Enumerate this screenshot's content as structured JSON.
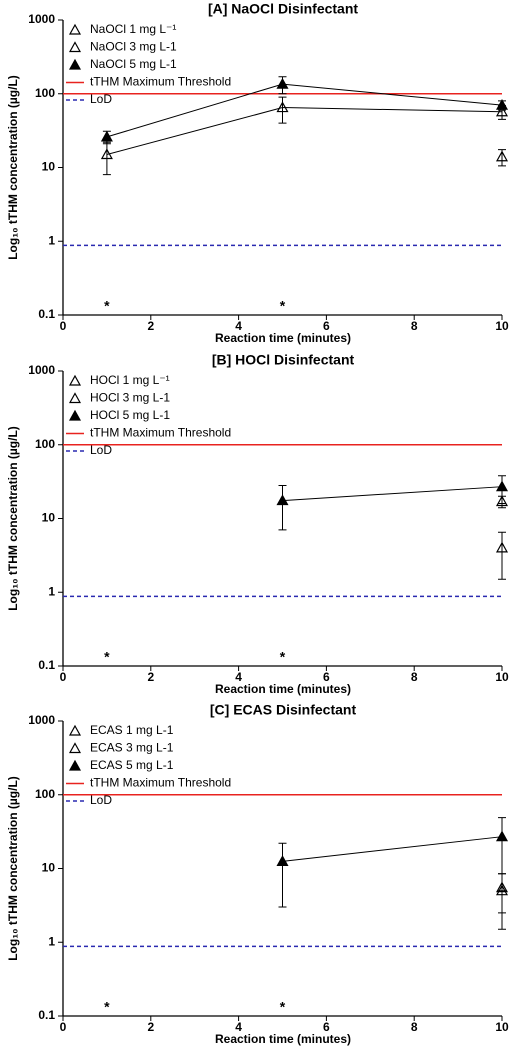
{
  "chart_data": [
    {
      "type": "line",
      "title": "[A] NaOCl Disinfectant",
      "xlabel": "Reaction time (minutes)",
      "ylabel": "Log₁₀ tTHM concentration (µg/L)",
      "x": [
        1,
        5,
        10
      ],
      "xlim": [
        0,
        10
      ],
      "xticks": [
        0,
        2,
        4,
        6,
        8,
        10
      ],
      "yscale": "log",
      "ylim": [
        0.1,
        1000
      ],
      "yticks": [
        0.1,
        1,
        10,
        100,
        1000
      ],
      "legend": "upper left",
      "series": [
        {
          "name": "NaOCl 1 mg L⁻¹",
          "color": "#000000",
          "marker_fill": "none",
          "values": [
            null,
            null,
            14
          ],
          "errors": [
            null,
            null,
            3.5
          ]
        },
        {
          "name": "NaOCl 3 mg L-1",
          "color": "#000000",
          "marker_fill": "none",
          "values": [
            15,
            65,
            57
          ],
          "errors": [
            7,
            25,
            12
          ]
        },
        {
          "name": "NaOCl 5 mg L-1",
          "color": "#000000",
          "marker_fill": "#000000",
          "values": [
            26,
            135,
            70
          ],
          "errors": [
            5,
            35,
            10
          ]
        }
      ],
      "hlines": [
        {
          "name": "tTHM Maximum Threshold",
          "value": 100,
          "color": "#e8231f",
          "dashed": false
        },
        {
          "name": "LoD",
          "value": 0.88,
          "color": "#2a2ab0",
          "dashed": true
        }
      ],
      "annotations": [
        {
          "text": "*",
          "x": 1
        },
        {
          "text": "*",
          "x": 5
        }
      ]
    },
    {
      "type": "line",
      "title": "[B] HOCl Disinfectant",
      "xlabel": "Reaction time (minutes)",
      "ylabel": "Log₁₀ tTHM concentration (µg/L)",
      "x": [
        1,
        5,
        10
      ],
      "xlim": [
        0,
        10
      ],
      "xticks": [
        0,
        2,
        4,
        6,
        8,
        10
      ],
      "yscale": "log",
      "ylim": [
        0.1,
        1000
      ],
      "yticks": [
        0.1,
        1,
        10,
        100,
        1000
      ],
      "legend": "upper left",
      "series": [
        {
          "name": "HOCl 1 mg L⁻¹",
          "color": "#000000",
          "marker_fill": "none",
          "values": [
            null,
            null,
            4
          ],
          "errors": [
            null,
            null,
            2.5
          ]
        },
        {
          "name": "HOCl 3 mg L-1",
          "color": "#000000",
          "marker_fill": "none",
          "values": [
            null,
            null,
            17
          ],
          "errors": [
            null,
            null,
            3
          ]
        },
        {
          "name": "HOCl 5 mg L-1",
          "color": "#000000",
          "marker_fill": "#000000",
          "values": [
            null,
            17.5,
            27
          ],
          "errors": [
            null,
            10.5,
            11
          ]
        }
      ],
      "hlines": [
        {
          "name": "tTHM Maximum Threshold",
          "value": 100,
          "color": "#e8231f",
          "dashed": false
        },
        {
          "name": "LoD",
          "value": 0.88,
          "color": "#2a2ab0",
          "dashed": true
        }
      ],
      "annotations": [
        {
          "text": "*",
          "x": 1
        },
        {
          "text": "*",
          "x": 5
        }
      ]
    },
    {
      "type": "line",
      "title": "[C] ECAS Disinfectant",
      "xlabel": "Reaction time (minutes)",
      "ylabel": "Log₁₀ tTHM concentration (µg/L)",
      "x": [
        1,
        5,
        10
      ],
      "xlim": [
        0,
        10
      ],
      "xticks": [
        0,
        2,
        4,
        6,
        8,
        10
      ],
      "yscale": "log",
      "ylim": [
        0.1,
        1000
      ],
      "yticks": [
        0.1,
        1,
        10,
        100,
        1000
      ],
      "legend": "upper left",
      "series": [
        {
          "name": "ECAS 1 mg L-1",
          "color": "#000000",
          "marker_fill": "none",
          "values": [
            null,
            null,
            5
          ],
          "errors": [
            null,
            null,
            3.5
          ]
        },
        {
          "name": "ECAS 3 mg L-1",
          "color": "#000000",
          "marker_fill": "none",
          "values": [
            null,
            null,
            5.5
          ],
          "errors": [
            null,
            null,
            3
          ]
        },
        {
          "name": "ECAS 5 mg L-1",
          "color": "#000000",
          "marker_fill": "#000000",
          "values": [
            null,
            12.5,
            27
          ],
          "errors": [
            null,
            9.5,
            22
          ]
        }
      ],
      "hlines": [
        {
          "name": "tTHM Maximum Threshold",
          "value": 100,
          "color": "#e8231f",
          "dashed": false
        },
        {
          "name": "LoD",
          "value": 0.88,
          "color": "#2a2ab0",
          "dashed": true
        }
      ],
      "annotations": [
        {
          "text": "*",
          "x": 1
        },
        {
          "text": "*",
          "x": 5
        }
      ]
    }
  ]
}
